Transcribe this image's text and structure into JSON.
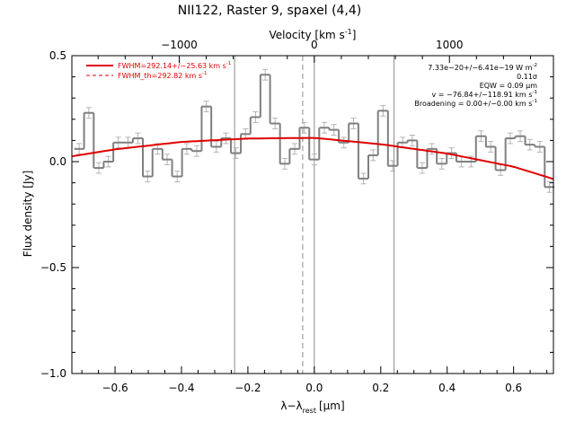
{
  "chart_data": {
    "type": "line",
    "title": "NII122, Raster 9, spaxel (4,4)",
    "xlabel": "λ−λ",
    "xlabel_sub": "rest",
    "xlabel_unit": "[μm]",
    "ylabel": "Flux density [Jy]",
    "top_axis_label": "Velocity [km s",
    "top_axis_label_sup": "-1",
    "top_axis_label_end": "]",
    "xlim": [
      -0.73,
      0.72
    ],
    "ylim": [
      -1.0,
      0.5
    ],
    "x_ticks": [
      -0.6,
      -0.4,
      -0.2,
      0.0,
      0.2,
      0.4,
      0.6
    ],
    "x_tick_labels": [
      "−0.6",
      "−0.4",
      "−0.2",
      "0.0",
      "0.2",
      "0.4",
      "0.6"
    ],
    "y_ticks": [
      -1.0,
      -0.5,
      0.0,
      0.5
    ],
    "y_tick_labels": [
      "−1.0",
      "−0.5",
      "0.0",
      "0.5"
    ],
    "top_ticks_velocity": [
      -1000,
      0,
      1000
    ],
    "top_tick_labels": [
      "−1000",
      "0",
      "1000"
    ],
    "velocity_per_micron": 2458,
    "vlines_solid": [
      -0.24,
      0.0,
      0.24
    ],
    "vline_dashed": -0.035,
    "spectrum": {
      "bin_width": 0.0295,
      "centers": [
        -0.708,
        -0.679,
        -0.649,
        -0.62,
        -0.59,
        -0.561,
        -0.531,
        -0.502,
        -0.472,
        -0.443,
        -0.413,
        -0.384,
        -0.354,
        -0.325,
        -0.295,
        -0.266,
        -0.236,
        -0.207,
        -0.177,
        -0.148,
        -0.118,
        -0.089,
        -0.059,
        -0.03,
        0.0,
        0.03,
        0.059,
        0.089,
        0.118,
        0.148,
        0.177,
        0.207,
        0.236,
        0.266,
        0.295,
        0.325,
        0.354,
        0.384,
        0.413,
        0.443,
        0.472,
        0.502,
        0.531,
        0.561,
        0.59,
        0.62,
        0.649,
        0.679,
        0.708
      ],
      "values": [
        0.06,
        0.23,
        -0.03,
        0.0,
        0.09,
        0.09,
        0.11,
        -0.07,
        0.06,
        0.01,
        -0.07,
        0.06,
        0.05,
        0.26,
        0.07,
        0.11,
        0.04,
        0.13,
        0.21,
        0.41,
        0.18,
        -0.01,
        0.06,
        0.16,
        0.01,
        0.16,
        0.15,
        0.09,
        0.18,
        -0.08,
        0.03,
        0.24,
        -0.02,
        0.09,
        0.1,
        -0.03,
        0.06,
        -0.01,
        0.04,
        0.0,
        0.0,
        0.12,
        0.07,
        -0.04,
        0.11,
        0.12,
        0.08,
        0.07,
        -0.12
      ],
      "error": 0.025
    },
    "fit": {
      "x": [
        -0.73,
        -0.6,
        -0.4,
        -0.2,
        0.0,
        0.2,
        0.4,
        0.6,
        0.72
      ],
      "values": [
        0.025,
        0.058,
        0.093,
        0.109,
        0.112,
        0.082,
        0.038,
        -0.024,
        -0.082
      ]
    },
    "legend": {
      "position": "top-left",
      "entries": [
        {
          "name": "FWHM=292.14+/−25.63 km s",
          "sup": "-1",
          "style": "solid"
        },
        {
          "name": "FWHM_th=292.82 km s",
          "sup": "-1",
          "style": "dashed"
        }
      ]
    },
    "annotations": [
      {
        "text": "7.33e−20+/−6.41e−19 W m",
        "sup": "-2"
      },
      {
        "text": "0.11σ",
        "sup": ""
      },
      {
        "text": "EQW = 0.09 μm",
        "sup": ""
      },
      {
        "text": "v = −76.84+/−118.91 km s",
        "sup": "-1"
      },
      {
        "text": "Broadening = 0.00+/−0.00 km s",
        "sup": "-1"
      }
    ],
    "colors": {
      "spectrum": "#7f7f7f",
      "error": "#b4b4b4",
      "fit": "#e00000",
      "axes": "#000000",
      "vlines": "#8c8c8c"
    }
  }
}
